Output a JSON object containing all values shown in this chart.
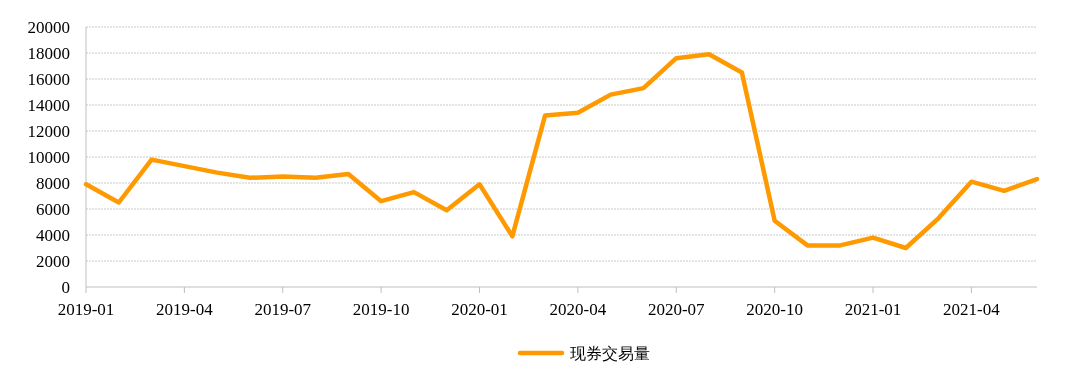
{
  "chart_data": {
    "type": "line",
    "x": [
      "2019-01",
      "2019-02",
      "2019-03",
      "2019-04",
      "2019-05",
      "2019-06",
      "2019-07",
      "2019-08",
      "2019-09",
      "2019-10",
      "2019-11",
      "2019-12",
      "2020-01",
      "2020-02",
      "2020-03",
      "2020-04",
      "2020-05",
      "2020-06",
      "2020-07",
      "2020-08",
      "2020-09",
      "2020-10",
      "2020-11",
      "2020-12",
      "2021-01",
      "2021-02",
      "2021-03",
      "2021-04",
      "2021-05",
      "2021-06"
    ],
    "series": [
      {
        "name": "现券交易量",
        "color": "#ff9900",
        "values": [
          7900,
          6500,
          9800,
          9300,
          8800,
          8400,
          8500,
          8400,
          8700,
          6600,
          7300,
          5900,
          7900,
          3900,
          13200,
          13400,
          14800,
          15300,
          17600,
          17900,
          16500,
          5100,
          3200,
          3200,
          3800,
          3000,
          5300,
          8100,
          7400,
          8300
        ]
      }
    ],
    "xlim": [
      "2019-01",
      "2021-06"
    ],
    "xticks": [
      "2019-01",
      "2019-04",
      "2019-07",
      "2019-10",
      "2020-01",
      "2020-04",
      "2020-07",
      "2020-10",
      "2021-01",
      "2021-04"
    ],
    "ylim": [
      0,
      20000
    ],
    "yticks": [
      0,
      2000,
      4000,
      6000,
      8000,
      10000,
      12000,
      14000,
      16000,
      18000,
      20000
    ],
    "grid": "y",
    "legend": "bottom",
    "marker": "none",
    "line_style": "solid"
  }
}
